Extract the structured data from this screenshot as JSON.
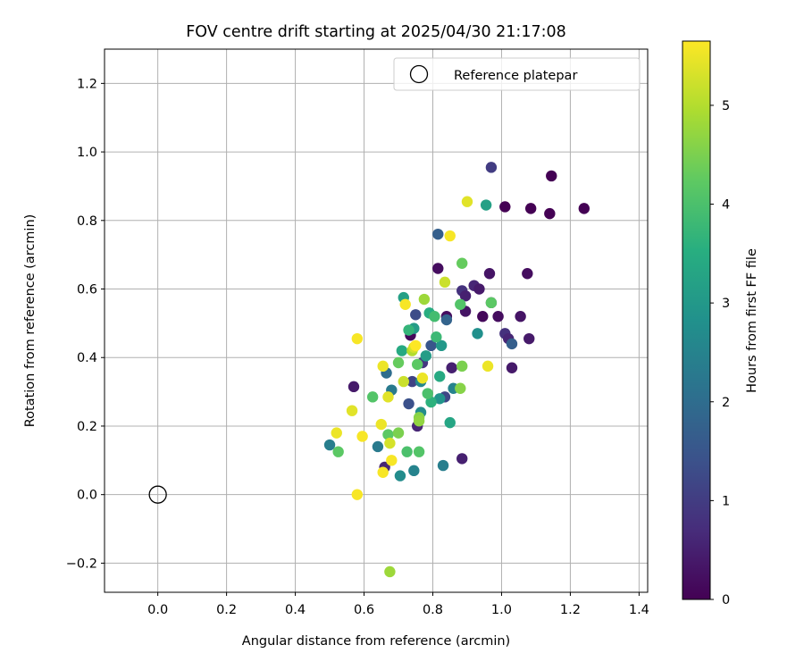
{
  "chart_data": {
    "type": "scatter",
    "title": "FOV centre drift starting at 2025/04/30 21:17:08",
    "xlabel": "Angular distance from reference (arcmin)",
    "ylabel": "Rotation from reference (arcmin)",
    "xlim": [
      -0.155,
      1.425
    ],
    "ylim": [
      -0.285,
      1.3
    ],
    "xticks": [
      0.0,
      0.2,
      0.4,
      0.6,
      0.8,
      1.0,
      1.2,
      1.4
    ],
    "xtick_labels": [
      "0.0",
      "0.2",
      "0.4",
      "0.6",
      "0.8",
      "1.0",
      "1.2",
      "1.4"
    ],
    "yticks": [
      -0.2,
      0.0,
      0.2,
      0.4,
      0.6,
      0.8,
      1.0,
      1.2
    ],
    "ytick_labels": [
      "−0.2",
      "0.0",
      "0.2",
      "0.4",
      "0.6",
      "0.8",
      "1.0",
      "1.2"
    ],
    "grid": true,
    "legend": {
      "placement": "top-right",
      "entries": [
        "Reference platepar"
      ]
    },
    "reference_point": {
      "x": 0.0,
      "y": 0.0,
      "marker": "open-circle"
    },
    "colorbar": {
      "label": "Hours from first FF file",
      "colormap": "viridis",
      "range": [
        0,
        5.65
      ],
      "ticks": [
        0,
        1,
        2,
        3,
        4,
        5
      ],
      "tick_labels": [
        "0",
        "1",
        "2",
        "3",
        "4",
        "5"
      ]
    },
    "series": [
      {
        "fields": [
          "x",
          "y",
          "hours"
        ],
        "points": [
          [
            0.97,
            0.955,
            1.0
          ],
          [
            1.145,
            0.93,
            0.0
          ],
          [
            1.01,
            0.84,
            0.0
          ],
          [
            1.085,
            0.835,
            0.0
          ],
          [
            1.14,
            0.82,
            0.0
          ],
          [
            1.24,
            0.835,
            0.0
          ],
          [
            0.815,
            0.66,
            0.2
          ],
          [
            0.965,
            0.645,
            0.3
          ],
          [
            1.075,
            0.645,
            0.2
          ],
          [
            0.92,
            0.61,
            0.6
          ],
          [
            0.885,
            0.595,
            0.8
          ],
          [
            0.895,
            0.58,
            0.5
          ],
          [
            0.935,
            0.6,
            0.4
          ],
          [
            0.97,
            0.56,
            0.5
          ],
          [
            0.895,
            0.535,
            0.3
          ],
          [
            0.84,
            0.52,
            0.2
          ],
          [
            0.945,
            0.52,
            0.1
          ],
          [
            0.99,
            0.52,
            0.2
          ],
          [
            1.055,
            0.52,
            0.3
          ],
          [
            1.01,
            0.47,
            0.8
          ],
          [
            1.02,
            0.455,
            0.6
          ],
          [
            1.08,
            0.455,
            0.4
          ],
          [
            1.03,
            0.37,
            0.4
          ],
          [
            0.855,
            0.37,
            0.5
          ],
          [
            0.77,
            0.385,
            0.9
          ],
          [
            0.735,
            0.465,
            0.1
          ],
          [
            0.795,
            0.435,
            1.5
          ],
          [
            0.84,
            0.51,
            1.8
          ],
          [
            0.815,
            0.76,
            1.7
          ],
          [
            0.75,
            0.525,
            1.3
          ],
          [
            0.835,
            0.285,
            1.2
          ],
          [
            0.74,
            0.33,
            1.1
          ],
          [
            0.73,
            0.265,
            1.4
          ],
          [
            0.755,
            0.2,
            0.6
          ],
          [
            0.57,
            0.315,
            0.4
          ],
          [
            0.66,
            0.08,
            0.6
          ],
          [
            0.885,
            0.105,
            0.5
          ],
          [
            1.03,
            0.44,
            1.7
          ],
          [
            0.665,
            0.355,
            2.0
          ],
          [
            0.68,
            0.305,
            2.3
          ],
          [
            0.5,
            0.145,
            2.4
          ],
          [
            0.64,
            0.14,
            2.3
          ],
          [
            0.705,
            0.055,
            2.7
          ],
          [
            0.745,
            0.07,
            2.5
          ],
          [
            0.83,
            0.085,
            2.4
          ],
          [
            0.86,
            0.31,
            2.5
          ],
          [
            0.82,
            0.28,
            2.9
          ],
          [
            0.765,
            0.33,
            2.6
          ],
          [
            0.825,
            0.435,
            3.0
          ],
          [
            0.78,
            0.405,
            3.1
          ],
          [
            0.715,
            0.575,
            3.2
          ],
          [
            0.745,
            0.485,
            3.1
          ],
          [
            0.79,
            0.53,
            3.5
          ],
          [
            0.955,
            0.845,
            3.2
          ],
          [
            0.93,
            0.47,
            2.8
          ],
          [
            0.82,
            0.345,
            3.4
          ],
          [
            0.85,
            0.21,
            3.3
          ],
          [
            0.765,
            0.24,
            2.7
          ],
          [
            0.71,
            0.42,
            3.4
          ],
          [
            0.795,
            0.27,
            3.6
          ],
          [
            0.81,
            0.46,
            3.8
          ],
          [
            0.805,
            0.52,
            3.9
          ],
          [
            0.73,
            0.48,
            3.7
          ],
          [
            0.785,
            0.295,
            4.0
          ],
          [
            0.88,
            0.555,
            4.1
          ],
          [
            0.97,
            0.56,
            4.2
          ],
          [
            0.885,
            0.675,
            4.3
          ],
          [
            0.755,
            0.38,
            4.2
          ],
          [
            0.7,
            0.385,
            4.3
          ],
          [
            0.625,
            0.285,
            4.1
          ],
          [
            0.725,
            0.125,
            4.0
          ],
          [
            0.76,
            0.125,
            4.1
          ],
          [
            0.525,
            0.125,
            4.2
          ],
          [
            0.67,
            0.175,
            4.2
          ],
          [
            0.7,
            0.18,
            4.5
          ],
          [
            0.76,
            0.225,
            4.6
          ],
          [
            0.76,
            0.215,
            4.7
          ],
          [
            0.885,
            0.375,
            4.5
          ],
          [
            0.88,
            0.31,
            4.6
          ],
          [
            0.775,
            0.57,
            4.8
          ],
          [
            0.715,
            0.33,
            5.2
          ],
          [
            0.74,
            0.42,
            5.0
          ],
          [
            0.745,
            0.43,
            5.3
          ],
          [
            0.835,
            0.62,
            5.2
          ],
          [
            0.9,
            0.855,
            5.4
          ],
          [
            0.85,
            0.755,
            5.6
          ],
          [
            0.72,
            0.555,
            5.6
          ],
          [
            0.75,
            0.435,
            5.7
          ],
          [
            0.655,
            0.375,
            5.5
          ],
          [
            0.77,
            0.34,
            5.5
          ],
          [
            0.96,
            0.375,
            5.5
          ],
          [
            0.58,
            0.455,
            5.6
          ],
          [
            0.565,
            0.245,
            5.4
          ],
          [
            0.65,
            0.205,
            5.5
          ],
          [
            0.67,
            0.285,
            5.4
          ],
          [
            0.52,
            0.18,
            5.5
          ],
          [
            0.595,
            0.17,
            5.6
          ],
          [
            0.675,
            0.15,
            5.3
          ],
          [
            0.68,
            0.1,
            5.6
          ],
          [
            0.655,
            0.065,
            5.6
          ],
          [
            0.58,
            0.0,
            5.6
          ],
          [
            0.675,
            -0.225,
            4.8
          ]
        ]
      }
    ]
  }
}
